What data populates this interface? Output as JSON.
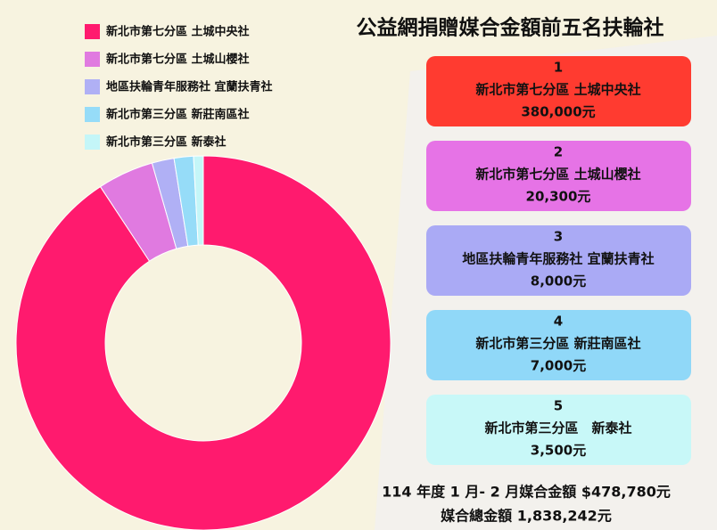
{
  "chart_data": {
    "type": "donut",
    "title": "公益網捐贈媒合金額前五名扶輪社",
    "categories": [
      "新北市第七分區 土城中央社",
      "新北市第七分區 土城山櫻社",
      "地區扶輪青年服務社 宜蘭扶青社",
      "新北市第三分區 新莊南區社",
      "新北市第三分區 新泰社"
    ],
    "card_names": [
      "新北市第七分區 土城中央社",
      "新北市第七分區 土城山櫻社",
      "地區扶輪青年服務社 宜蘭扶青社",
      "新北市第三分區 新莊南區社",
      "新北市第三分區　新泰社"
    ],
    "ranks": [
      1,
      2,
      3,
      4,
      5
    ],
    "values": [
      380000,
      20300,
      8000,
      7000,
      3500
    ],
    "value_labels": [
      "380,000元",
      "20,300元",
      "8,000元",
      "7,000元",
      "3,500元"
    ],
    "colors": [
      "#ff1a6e",
      "#e07ae0",
      "#b0b0f5",
      "#96dcf8",
      "#c4f6f8"
    ],
    "card_colors": [
      "#ff3b30",
      "#e673e6",
      "#aaaaf5",
      "#90d8f8",
      "#c8f8f8"
    ],
    "legend": "top-left",
    "notes": [
      "114 年度 1 月- 2 月媒合金額 $478,780元",
      "媒合總金額 1,838,242元"
    ]
  }
}
